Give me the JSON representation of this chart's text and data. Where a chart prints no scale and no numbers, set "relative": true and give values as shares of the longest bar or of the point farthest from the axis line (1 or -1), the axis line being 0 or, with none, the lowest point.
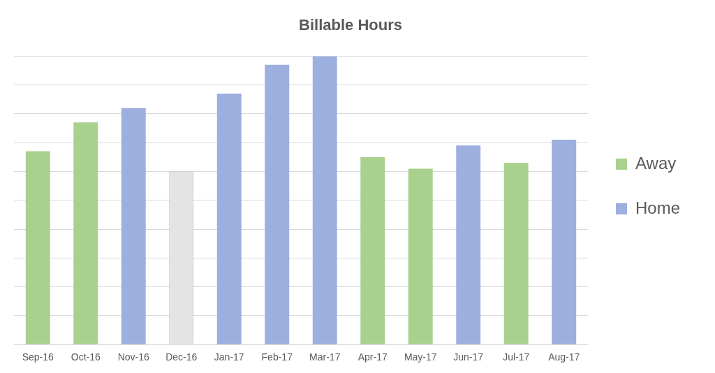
{
  "chart_data": {
    "type": "bar",
    "title": "Billable Hours",
    "relative": true,
    "grid": "y",
    "legend": "right",
    "categories": [
      "Sep-16",
      "Oct-16",
      "Nov-16",
      "Dec-16",
      "Jan-17",
      "Feb-17",
      "Mar-17",
      "Apr-17",
      "May-17",
      "Jun-17",
      "Jul-17",
      "Aug-17"
    ],
    "series": [
      {
        "name": "Away",
        "color": "#a9d18e",
        "values": [
          0.67,
          0.77,
          null,
          null,
          null,
          null,
          null,
          0.65,
          0.61,
          null,
          0.63,
          null
        ]
      },
      {
        "name": "Home",
        "color": "#9dafdf",
        "values": [
          null,
          null,
          0.82,
          null,
          0.87,
          0.97,
          1,
          null,
          null,
          0.69,
          null,
          0.71
        ]
      },
      {
        "color": "#e4e4e4",
        "values": [
          null,
          null,
          null,
          0.6,
          null,
          null,
          null,
          null,
          null,
          null,
          null,
          null
        ]
      }
    ]
  }
}
